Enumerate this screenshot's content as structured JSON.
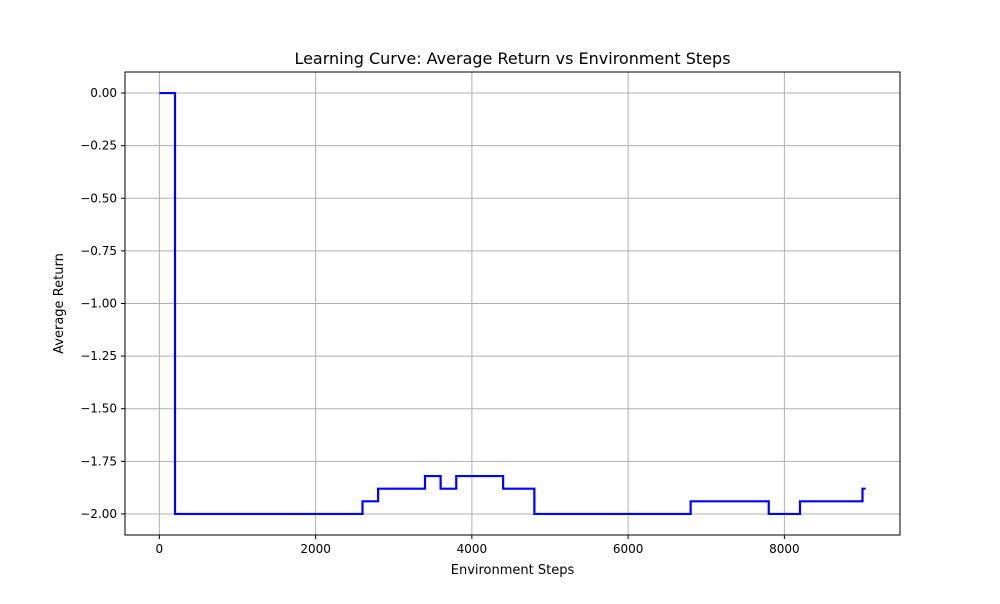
{
  "chart_data": {
    "type": "line",
    "title": "Learning Curve: Average Return vs Environment Steps",
    "xlabel": "Environment Steps",
    "ylabel": "Average Return",
    "xlim": [
      -440,
      9480
    ],
    "ylim": [
      -2.1,
      0.1
    ],
    "xticks": [
      0,
      2000,
      4000,
      6000,
      8000
    ],
    "xtick_labels": [
      "0",
      "2000",
      "4000",
      "6000",
      "8000"
    ],
    "yticks": [
      0.0,
      -0.25,
      -0.5,
      -0.75,
      -1.0,
      -1.25,
      -1.5,
      -1.75,
      -2.0
    ],
    "ytick_labels": [
      "0.00",
      "−0.25",
      "−0.50",
      "−0.75",
      "−1.00",
      "−1.25",
      "−1.50",
      "−1.75",
      "−2.00"
    ],
    "grid": true,
    "step": "post",
    "series": [
      {
        "color": "#0000ff",
        "x": [
          0,
          200,
          2600,
          2800,
          3400,
          3600,
          3800,
          4400,
          4800,
          6800,
          7800,
          8200,
          9000,
          9040
        ],
        "y": [
          0.0,
          -2.0,
          -1.94,
          -1.88,
          -1.82,
          -1.88,
          -1.82,
          -1.88,
          -2.0,
          -1.94,
          -2.0,
          -1.94,
          -1.88,
          -1.88
        ]
      }
    ]
  }
}
